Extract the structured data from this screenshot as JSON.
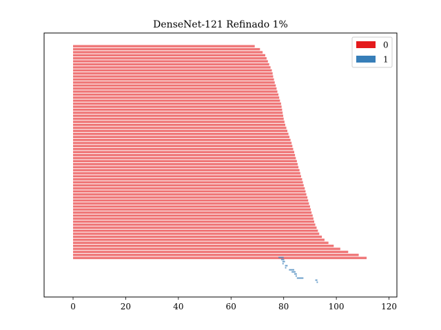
{
  "chart_data": {
    "type": "bar",
    "orientation": "horizontal",
    "title": "DenseNet-121 Refinado 1%",
    "xlabel": "",
    "ylabel": "",
    "xlim": [
      -11,
      123
    ],
    "xticks": [
      "0",
      "20",
      "40",
      "60",
      "80",
      "100",
      "120"
    ],
    "grid": false,
    "legend_position": "upper-right",
    "series": [
      {
        "name": "0",
        "color": "#e41a1c",
        "values": [
          69.0,
          71.0,
          72.0,
          73.0,
          73.5,
          74.0,
          74.5,
          75.0,
          75.5,
          75.8,
          76.0,
          76.3,
          76.6,
          77.0,
          77.3,
          77.6,
          78.0,
          78.3,
          78.6,
          79.0,
          79.2,
          79.4,
          79.6,
          79.8,
          80.0,
          80.3,
          80.6,
          81.0,
          81.4,
          81.8,
          82.2,
          82.6,
          83.0,
          83.3,
          83.6,
          84.0,
          84.3,
          84.6,
          85.0,
          85.3,
          85.6,
          86.0,
          86.3,
          86.6,
          87.0,
          87.3,
          87.6,
          88.0,
          88.3,
          88.6,
          89.0,
          89.3,
          89.6,
          90.0,
          90.3,
          90.6,
          91.0,
          91.3,
          91.6,
          92.0,
          92.5,
          93.0,
          93.5,
          94.5,
          95.5,
          97.0,
          99.0,
          101.5,
          104.5,
          108.5,
          111.5
        ]
      },
      {
        "name": "1",
        "color": "#377eb8",
        "segments": [
          {
            "start": 78.0,
            "end": 80.0
          },
          {
            "start": 79.0,
            "end": 80.2
          },
          {
            "start": 79.5,
            "end": 80.5
          },
          {
            "start": 79.5,
            "end": 80.0
          },
          {
            "start": 80.5,
            "end": 81.5
          },
          {
            "start": 80.5,
            "end": 81.0
          },
          {
            "start": 82.0,
            "end": 84.0
          },
          {
            "start": 83.0,
            "end": 84.5
          },
          {
            "start": 84.0,
            "end": 85.0
          },
          {
            "start": 84.5,
            "end": 85.0
          },
          {
            "start": 85.0,
            "end": 87.5
          },
          {
            "start": 92.0,
            "end": 92.8
          },
          {
            "start": 92.5,
            "end": 93.0
          }
        ]
      }
    ]
  }
}
